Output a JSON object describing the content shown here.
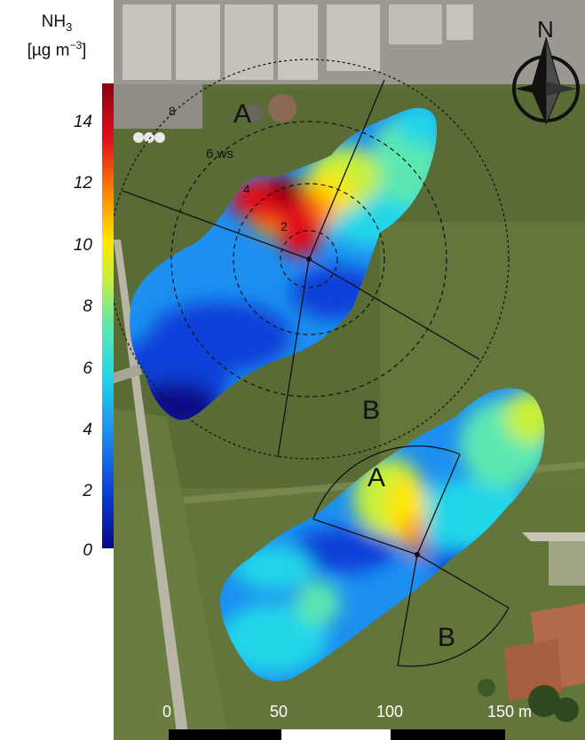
{
  "legend": {
    "title_main": "NH",
    "title_sub": "3",
    "unit_open": "[",
    "unit_mu": "µg m",
    "unit_sup": "−3",
    "unit_close": "]",
    "ticks": [
      "14",
      "12",
      "10",
      "8",
      "6",
      "4",
      "2",
      "0"
    ],
    "colormap": [
      "#08088a",
      "#0a3fd8",
      "#1c8ff0",
      "#23d6e8",
      "#5ce8b0",
      "#c8ef3a",
      "#ffe600",
      "#ff8a00",
      "#e0101a",
      "#8e0010"
    ],
    "range": [
      0,
      15
    ]
  },
  "map": {
    "north_label": "N",
    "field_A_top": "A",
    "field_B_top": "B",
    "field_A_bottom": "A",
    "field_B_bottom": "B",
    "ws_label": "6 ws",
    "ring_labels": [
      "2",
      "4",
      "8"
    ],
    "scale_labels": [
      "0",
      "50",
      "100",
      "150 m"
    ],
    "colors": {
      "grass_dark": "#4a5e31",
      "grass_mid": "#5d7038",
      "grass_light": "#70803f",
      "road": "#b9b6a8",
      "roof": "#9c9890",
      "farm_roof": "#b36a4a"
    }
  }
}
